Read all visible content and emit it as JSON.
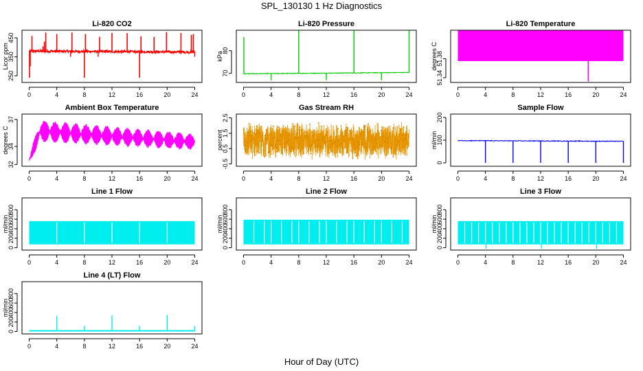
{
  "figure": {
    "title": "SPL_130130  1 Hz Diagnostics",
    "xlabel": "Hour of Day (UTC)"
  },
  "chart_data": [
    {
      "id": "p1",
      "type": "line",
      "title": "Li-820 CO2",
      "ylabel": "Licor ppm",
      "color": "#ff0000",
      "xlim": [
        0,
        24
      ],
      "xticks": [
        "0",
        "4",
        "8",
        "12",
        "16",
        "20",
        "24"
      ],
      "ylim": [
        215,
        490
      ],
      "yticks": [
        {
          "v": 250,
          "t": "250"
        },
        {
          "v": 350,
          "t": "350"
        },
        {
          "v": 450,
          "t": "450"
        }
      ],
      "pattern": "co2",
      "baseline": [
        380,
        375
      ],
      "noise": 6,
      "spikes": [
        {
          "x": 0.05,
          "y": 240
        },
        {
          "x": 0.15,
          "y": 300
        },
        {
          "x": 0.4,
          "y": 460
        },
        {
          "x": 2.0,
          "y": 405
        },
        {
          "x": 2.2,
          "y": 430
        },
        {
          "x": 2.4,
          "y": 478
        },
        {
          "x": 4.0,
          "y": 470
        },
        {
          "x": 6.2,
          "y": 478
        },
        {
          "x": 8.0,
          "y": 240
        },
        {
          "x": 8.15,
          "y": 470
        },
        {
          "x": 10.2,
          "y": 455
        },
        {
          "x": 12.0,
          "y": 476
        },
        {
          "x": 14.2,
          "y": 475
        },
        {
          "x": 16.0,
          "y": 240
        },
        {
          "x": 16.2,
          "y": 458
        },
        {
          "x": 18.1,
          "y": 455
        },
        {
          "x": 19.9,
          "y": 480
        },
        {
          "x": 22.0,
          "y": 476
        },
        {
          "x": 23.5,
          "y": 465
        },
        {
          "x": 23.8,
          "y": 470
        }
      ],
      "dips": [
        {
          "x": 6.0,
          "y": 350
        },
        {
          "x": 10.0,
          "y": 350
        },
        {
          "x": 16.0,
          "y": 345
        },
        {
          "x": 24.0,
          "y": 350
        }
      ]
    },
    {
      "id": "p2",
      "type": "line",
      "title": "Li-820 Pressure",
      "ylabel": "kPa",
      "color": "#00cc00",
      "xlim": [
        0,
        24
      ],
      "xticks": [
        "0",
        "4",
        "8",
        "12",
        "16",
        "20",
        "24"
      ],
      "ylim": [
        66,
        89
      ],
      "yticks": [
        {
          "v": 70,
          "t": "70"
        },
        {
          "v": 80,
          "t": "80"
        }
      ],
      "pattern": "pressure",
      "baseline": [
        69.8,
        70.4
      ],
      "noise": 0.15,
      "spikes": [
        {
          "x": 0.05,
          "y": 86
        },
        {
          "x": 8.0,
          "y": 89
        },
        {
          "x": 16.0,
          "y": 89
        },
        {
          "x": 24.0,
          "y": 89
        }
      ],
      "dips": [
        {
          "x": 4.0,
          "y": 67
        },
        {
          "x": 12.0,
          "y": 67
        },
        {
          "x": 20.0,
          "y": 67
        }
      ]
    },
    {
      "id": "p3",
      "type": "line",
      "title": "Li-820 Temperature",
      "ylabel": "degrees C",
      "color": "#ff00ff",
      "xlim": [
        0,
        24
      ],
      "xticks": [
        "0",
        "4",
        "8",
        "12",
        "16",
        "20",
        "24"
      ],
      "ylim": [
        51.33,
        51.44
      ],
      "yticks": [
        {
          "v": 51.34,
          "t": "51.34"
        },
        {
          "v": 51.38,
          "t": "51.38"
        }
      ],
      "pattern": "temp",
      "band": [
        51.375,
        51.44
      ],
      "dip": {
        "x": 18.9,
        "y": 51.332
      }
    },
    {
      "id": "p4",
      "type": "line",
      "title": "Ambient Box Temperature",
      "ylabel": "degrees C",
      "color": "#ff00ff",
      "xlim": [
        0,
        24
      ],
      "xticks": [
        "0",
        "4",
        "8",
        "12",
        "16",
        "20",
        "24"
      ],
      "ylim": [
        31.8,
        37.6
      ],
      "yticks": [
        {
          "v": 32,
          "t": "32"
        },
        {
          "v": 34,
          "t": "34"
        },
        {
          "v": 37,
          "t": "37"
        }
      ],
      "pattern": "ambient",
      "mean_start": 35.8,
      "mean_end": 34.5,
      "amp_start": 1.1,
      "amp_end": 0.8,
      "period": 1.5,
      "init_low": 32.5
    },
    {
      "id": "p5",
      "type": "line",
      "title": "Gas Stream RH",
      "ylabel": "percent",
      "color": "#e69500",
      "xlim": [
        0,
        24
      ],
      "xticks": [
        "0",
        "4",
        "8",
        "12",
        "16",
        "20",
        "24"
      ],
      "ylim": [
        -0.65,
        2.75
      ],
      "yticks": [
        {
          "v": -0.5,
          "t": "-0.5"
        },
        {
          "v": 0.5,
          "t": "0.5"
        },
        {
          "v": 1.5,
          "t": "1.5"
        },
        {
          "v": 2.5,
          "t": "2.5"
        }
      ],
      "pattern": "rh",
      "center": 1.0,
      "spread": 1.25
    },
    {
      "id": "p6",
      "type": "line",
      "title": "Sample Flow",
      "ylabel": "ml/min",
      "color": "#0000ff",
      "xlim": [
        0,
        24
      ],
      "xticks": [
        "0",
        "4",
        "8",
        "12",
        "16",
        "20",
        "24"
      ],
      "ylim": [
        -15,
        215
      ],
      "yticks": [
        {
          "v": 0,
          "t": "0"
        },
        {
          "v": 100,
          "t": "100"
        },
        {
          "v": 200,
          "t": "200"
        }
      ],
      "pattern": "sample",
      "baseline": [
        98,
        95
      ],
      "noise": 1.5,
      "dips": [
        {
          "x": 4.0,
          "y": 0
        },
        {
          "x": 8.0,
          "y": 0
        },
        {
          "x": 12.0,
          "y": 0
        },
        {
          "x": 16.0,
          "y": 0
        },
        {
          "x": 20.0,
          "y": 0
        },
        {
          "x": 24.0,
          "y": 0
        }
      ]
    },
    {
      "id": "p7",
      "type": "line",
      "title": "Line 1 Flow",
      "ylabel": "ml/min",
      "color": "#00eeee",
      "xlim": [
        0,
        24
      ],
      "xticks": [
        "0",
        "4",
        "8",
        "12",
        "16",
        "20",
        "24"
      ],
      "ylim": [
        -50,
        1050
      ],
      "yticks": [
        {
          "v": 0,
          "t": "0"
        },
        {
          "v": 200,
          "t": "200"
        },
        {
          "v": 400,
          "t": "400"
        },
        {
          "v": 600,
          "t": "600"
        },
        {
          "v": 800,
          "t": "800"
        }
      ],
      "pattern": "band",
      "low": 70,
      "high": 560,
      "gaps": [
        4.0,
        8.0,
        12.0,
        16.0,
        20.0
      ],
      "edge_end": 24.0
    },
    {
      "id": "p8",
      "type": "line",
      "title": "Line 2 Flow",
      "ylabel": "ml/min",
      "color": "#00eeee",
      "xlim": [
        0,
        24
      ],
      "xticks": [
        "0",
        "4",
        "8",
        "12",
        "16",
        "20",
        "24"
      ],
      "ylim": [
        -50,
        1050
      ],
      "yticks": [
        {
          "v": 0,
          "t": "0"
        },
        {
          "v": 200,
          "t": "200"
        },
        {
          "v": 400,
          "t": "400"
        },
        {
          "v": 600,
          "t": "600"
        },
        {
          "v": 800,
          "t": "800"
        }
      ],
      "pattern": "band",
      "low": 70,
      "high": 590,
      "gaps": [
        1.5,
        3.0,
        4.0,
        5.5,
        7.0,
        8.0,
        9.5,
        11.0,
        12.0,
        13.5,
        15.0,
        16.0,
        17.5,
        19.0,
        20.0,
        21.5,
        23.0
      ],
      "edge_end": 24.0
    },
    {
      "id": "p9",
      "type": "line",
      "title": "Line 3 Flow",
      "ylabel": "ml/min",
      "color": "#00eeee",
      "xlim": [
        0,
        24
      ],
      "xticks": [
        "0",
        "4",
        "8",
        "12",
        "16",
        "20",
        "24"
      ],
      "ylim": [
        -50,
        1050
      ],
      "yticks": [
        {
          "v": 0,
          "t": "0"
        },
        {
          "v": 200,
          "t": "200"
        },
        {
          "v": 400,
          "t": "400"
        },
        {
          "v": 600,
          "t": "600"
        },
        {
          "v": 800,
          "t": "800"
        }
      ],
      "pattern": "band",
      "low": 70,
      "high": 560,
      "gaps": [
        1.0,
        2.0,
        3.0,
        4.0,
        5.0,
        6.0,
        7.0,
        8.0,
        9.0,
        10.0,
        11.0,
        12.0,
        13.0,
        14.0,
        15.0,
        16.0,
        17.0,
        18.0,
        19.0,
        20.0,
        21.0,
        22.0,
        23.0
      ],
      "deep": [
        4.0,
        12.0,
        20.0
      ],
      "edge_end": 24.0
    },
    {
      "id": "p10",
      "type": "line",
      "title": "Line 4 (LT) Flow",
      "ylabel": "ml/min",
      "color": "#00eeee",
      "xlim": [
        0,
        24
      ],
      "xticks": [
        "0",
        "4",
        "8",
        "12",
        "16",
        "20",
        "24"
      ],
      "ylim": [
        -50,
        1050
      ],
      "yticks": [
        {
          "v": 0,
          "t": "0"
        },
        {
          "v": 200,
          "t": "200"
        },
        {
          "v": 400,
          "t": "400"
        },
        {
          "v": 600,
          "t": "600"
        },
        {
          "v": 800,
          "t": "800"
        }
      ],
      "pattern": "flat",
      "baseline": 15,
      "spikes": [
        {
          "x": 4.0,
          "y": 330
        },
        {
          "x": 8.0,
          "y": 120
        },
        {
          "x": 12.0,
          "y": 340
        },
        {
          "x": 16.0,
          "y": 120
        },
        {
          "x": 20.0,
          "y": 350
        },
        {
          "x": 24.0,
          "y": 120
        }
      ]
    }
  ]
}
